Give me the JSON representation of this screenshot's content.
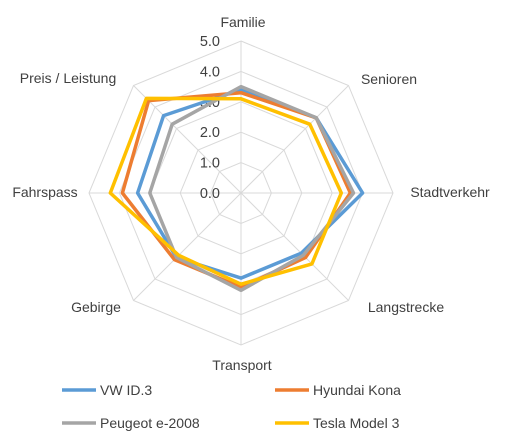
{
  "chart_data": {
    "type": "radar",
    "categories": [
      "Familie",
      "Senioren",
      "Stadtverkehr",
      "Langstrecke",
      "Transport",
      "Gebirge",
      "Fahrspass",
      "Preis / Leistung"
    ],
    "rlim": [
      0,
      5
    ],
    "ticks": [
      "0.0",
      "1.0",
      "2.0",
      "3.0",
      "4.0",
      "5.0"
    ],
    "grid": true,
    "legend_position": "bottom",
    "series": [
      {
        "name": "VW ID.3",
        "color": "#5b9bd5",
        "values": [
          3.4,
          3.5,
          4.0,
          2.8,
          2.8,
          3.0,
          3.4,
          3.6
        ]
      },
      {
        "name": "Hyundai Kona",
        "color": "#ed7d31",
        "values": [
          3.3,
          3.5,
          3.6,
          3.0,
          3.1,
          3.1,
          3.9,
          4.3
        ]
      },
      {
        "name": "Peugeot e-2008",
        "color": "#a5a5a5",
        "values": [
          3.5,
          3.5,
          3.7,
          2.9,
          3.2,
          3.0,
          3.0,
          3.2
        ]
      },
      {
        "name": "Tesla Model 3",
        "color": "#ffc000",
        "values": [
          3.1,
          3.2,
          3.3,
          3.3,
          3.0,
          2.9,
          4.3,
          4.4
        ]
      }
    ]
  }
}
